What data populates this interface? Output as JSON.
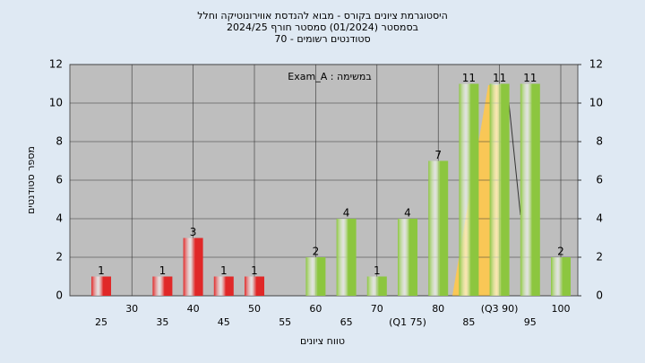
{
  "chart_data": {
    "type": "bar",
    "title": [
      "היסטוגרמת ציונים בקורס - מבוא להנדסת אווירונוטיקה וחלל",
      "בסמסטר  (01/2024)  סמסטר חורף 2024/25",
      "סטודנטים רשומים - 70"
    ],
    "annotation": "במשימה : Exam_A",
    "xlabel": "טווח ציונים",
    "ylabel": "מספר סטודנטים",
    "categories": [
      "25",
      "30",
      "35",
      "40",
      "45",
      "50",
      "55",
      "60",
      "65",
      "70",
      "(Q1 75)",
      "80",
      "85",
      "(Q3 90)",
      "95",
      "100"
    ],
    "values": [
      1,
      0,
      1,
      3,
      1,
      1,
      0,
      2,
      4,
      1,
      4,
      7,
      11,
      11,
      11,
      2
    ],
    "colors": [
      "#e02828",
      "#e02828",
      "#e02828",
      "#e02828",
      "#e02828",
      "#e02828",
      "#e02828",
      "#8cc63f",
      "#8cc63f",
      "#8cc63f",
      "#8cc63f",
      "#8cc63f",
      "#8cc63f",
      "#8cc63f",
      "#8cc63f",
      "#8cc63f"
    ],
    "ylim": [
      0,
      12
    ],
    "yticks": [
      0,
      2,
      4,
      6,
      8,
      10,
      12
    ],
    "y2lim": [
      0,
      12
    ],
    "y2ticks": [
      0,
      2,
      4,
      6,
      8,
      10,
      12
    ],
    "grid": true
  }
}
